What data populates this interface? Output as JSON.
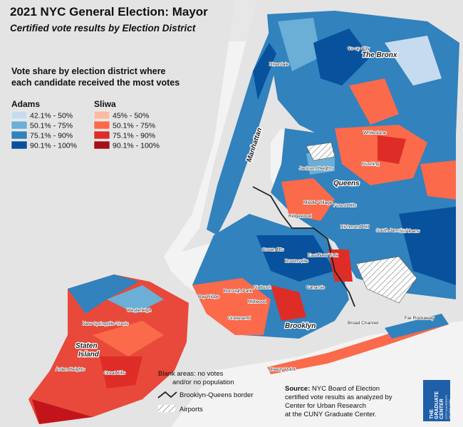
{
  "header": {
    "title": "2021 NYC General Election: Mayor",
    "subtitle": "Certified vote results by Election District"
  },
  "legend": {
    "heading": [
      "Vote share by election district where",
      "each candidate received the most votes"
    ],
    "groups": [
      {
        "name": "Adams",
        "ranges": [
          "42.1% - 50%",
          "50.1% - 75%",
          "75.1% - 90%",
          "90.1% - 100%"
        ],
        "colors": [
          "#c6dbef",
          "#6baed6",
          "#3182bd",
          "#08519c"
        ]
      },
      {
        "name": "Sliwa",
        "ranges": [
          "45% - 50%",
          "50.1% - 75%",
          "75.1% - 90%",
          "90.1% - 100%"
        ],
        "colors": [
          "#fcbba1",
          "#fb6a4a",
          "#de2d26",
          "#a50f15"
        ]
      }
    ]
  },
  "boroughs": [
    "The Bronx",
    "Manhattan",
    "Queens",
    "Brooklyn",
    "Staten",
    "Island"
  ],
  "neighborhoods": [
    "Riverdale",
    "Co-op City",
    "Whitestone",
    "Jackson Heights",
    "Flushing",
    "Middle Village",
    "Ridgewood",
    "Forest Hills",
    "Richmond Hill",
    "South Jamaica",
    "St. Albans",
    "Crown Hts",
    "Brownsville",
    "East New York",
    "Canarsie",
    "Bay Ridge",
    "Borough Park",
    "Midwood",
    "Flatbush",
    "Gravesend",
    "Westerleigh",
    "New Springville-Travis",
    "Arden Heights",
    "Great Kills",
    "Broad Channel",
    "Far Rockaway",
    "Breezy Point"
  ],
  "notes": {
    "blank": [
      "Blank areas: no votes",
      "and/or no population"
    ],
    "border": "Brooklyn-Queens border",
    "airports": "Airports"
  },
  "source": {
    "label": "Source:",
    "lines": [
      "NYC Board of Election",
      "certified vote results as analyzed by",
      "Center for Urban Research",
      "at the CUNY Graduate Center."
    ]
  },
  "logo": {
    "name": [
      "THE",
      "GRADUATE",
      "CENTER"
    ],
    "university": [
      "CITY UNIVERSITY",
      "OF NEW YORK"
    ]
  }
}
